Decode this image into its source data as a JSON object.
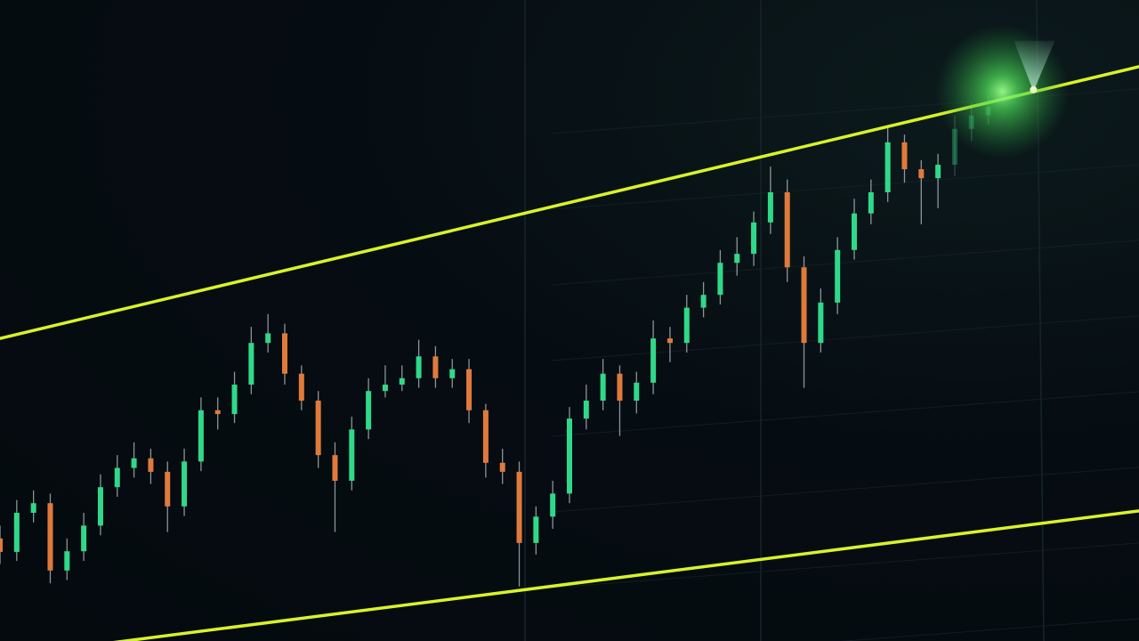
{
  "chart_data": {
    "type": "candlestick",
    "title": "",
    "xlabel": "",
    "ylabel": "",
    "xlim": [
      0,
      68
    ],
    "ylim": [
      0,
      100
    ],
    "grid": true,
    "legend": "none",
    "colors": {
      "background": "#050b10",
      "up": "#2fd98a",
      "down": "#e07a3c",
      "wick": "#b9c2c4",
      "channel": "#d9f22a",
      "glow": "#5cf06a",
      "grid": "#16252b"
    },
    "candles": [
      [
        16,
        18,
        12,
        13.9
      ],
      [
        13.9,
        22,
        12.5,
        20
      ],
      [
        20,
        23.5,
        18.5,
        21.5
      ],
      [
        21.5,
        23,
        9,
        11
      ],
      [
        11,
        16,
        9.5,
        14
      ],
      [
        14,
        20,
        12.5,
        18
      ],
      [
        18,
        26,
        16.5,
        24
      ],
      [
        24,
        29,
        22.5,
        27
      ],
      [
        27,
        31,
        25.5,
        28.5
      ],
      [
        28.5,
        30,
        24.5,
        26.4
      ],
      [
        26.4,
        28,
        17,
        21
      ],
      [
        21,
        30,
        19.5,
        28
      ],
      [
        28,
        38,
        26.5,
        36
      ],
      [
        36,
        38,
        33,
        35.4
      ],
      [
        35.4,
        42,
        34,
        40
      ],
      [
        40,
        49,
        38.5,
        46.5
      ],
      [
        46.5,
        51,
        45,
        48
      ],
      [
        48,
        49.5,
        40,
        41.7
      ],
      [
        41.7,
        43,
        36,
        37.5
      ],
      [
        37.5,
        39,
        27,
        29
      ],
      [
        29,
        31,
        17,
        25
      ],
      [
        25,
        35,
        23.5,
        33
      ],
      [
        33,
        41,
        31.5,
        39
      ],
      [
        39,
        43,
        38,
        40
      ],
      [
        40,
        43,
        39,
        41
      ],
      [
        41,
        47,
        39.5,
        44.4
      ],
      [
        44.4,
        46,
        39.5,
        41
      ],
      [
        41,
        44,
        39.5,
        42.4
      ],
      [
        42.4,
        44,
        34,
        36
      ],
      [
        36,
        37,
        25.5,
        27.8
      ],
      [
        27.8,
        30,
        24.5,
        26.4
      ],
      [
        26.4,
        28,
        8.5,
        15.3
      ],
      [
        15.3,
        21,
        13.5,
        19.4
      ],
      [
        19.4,
        25,
        17.5,
        23
      ],
      [
        23,
        36.5,
        21.5,
        34.7
      ],
      [
        34.7,
        40,
        33,
        37.5
      ],
      [
        37.5,
        44,
        36,
        41.7
      ],
      [
        41.7,
        43,
        32,
        37.5
      ],
      [
        37.5,
        42,
        35.5,
        40.3
      ],
      [
        40.3,
        50,
        38.5,
        47.2
      ],
      [
        47.2,
        49,
        43.5,
        46.5
      ],
      [
        46.5,
        54,
        45,
        52
      ],
      [
        52,
        56,
        50.5,
        54
      ],
      [
        54,
        61,
        52.5,
        59
      ],
      [
        59,
        63,
        57,
        60.4
      ],
      [
        60.4,
        67,
        58.5,
        65.3
      ],
      [
        65.3,
        74,
        63.5,
        70
      ],
      [
        70,
        72,
        56,
        58.3
      ],
      [
        58.3,
        60,
        39.5,
        46.5
      ],
      [
        46.5,
        55,
        45,
        52.8
      ],
      [
        52.8,
        63,
        51,
        61
      ],
      [
        61,
        69,
        59.5,
        66.7
      ],
      [
        66.7,
        72,
        65,
        70
      ],
      [
        70,
        80,
        68.5,
        77.8
      ],
      [
        77.8,
        79,
        71.5,
        73.6
      ],
      [
        73.6,
        75,
        65,
        72.2
      ],
      [
        72.2,
        76,
        67.5,
        74.3
      ],
      [
        74.3,
        82,
        72.5,
        79.9
      ],
      [
        79.9,
        84,
        78,
        82
      ],
      [
        82,
        85,
        80.5,
        83.3
      ]
    ],
    "channel": {
      "upper": [
        [
          0,
          47.2
        ],
        [
          68,
          89.6
        ]
      ],
      "lower": [
        [
          0,
          -2.5
        ],
        [
          68,
          20.3
        ]
      ]
    },
    "marker": {
      "type": "breakout-glow",
      "at": [
        61.7,
        86
      ]
    }
  }
}
